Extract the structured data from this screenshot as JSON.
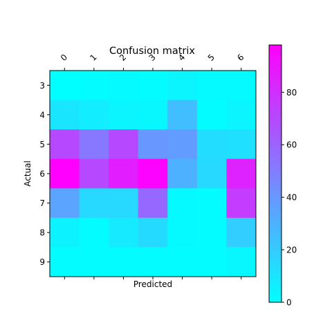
{
  "chart_data": {
    "type": "heatmap",
    "title": "Confusion matrix",
    "xlabel": "Predicted",
    "ylabel": "Actual",
    "x_categories": [
      "0",
      "1",
      "2",
      "3",
      "4",
      "5",
      "6"
    ],
    "y_categories": [
      "3",
      "4",
      "5",
      "6",
      "7",
      "8",
      "9"
    ],
    "values": [
      [
        0,
        1,
        2,
        1,
        4,
        2,
        2
      ],
      [
        10,
        7,
        4,
        3,
        25,
        1,
        4
      ],
      [
        70,
        52,
        70,
        40,
        38,
        13,
        12
      ],
      [
        98,
        70,
        87,
        97,
        30,
        15,
        85
      ],
      [
        35,
        15,
        15,
        58,
        2,
        1,
        75
      ],
      [
        5,
        1,
        8,
        14,
        2,
        1,
        19
      ],
      [
        1,
        1,
        1,
        1,
        1,
        1,
        3
      ]
    ],
    "colormap": "cool",
    "color_low": "#00ffff",
    "color_high": "#ff00ff",
    "colorbar": {
      "min": 0,
      "max": 98,
      "ticks": [
        0,
        20,
        40,
        60,
        80
      ],
      "tick_labels": [
        "0",
        "20",
        "40",
        "60",
        "80"
      ]
    },
    "x_ticks_position": "top",
    "grid": false
  }
}
